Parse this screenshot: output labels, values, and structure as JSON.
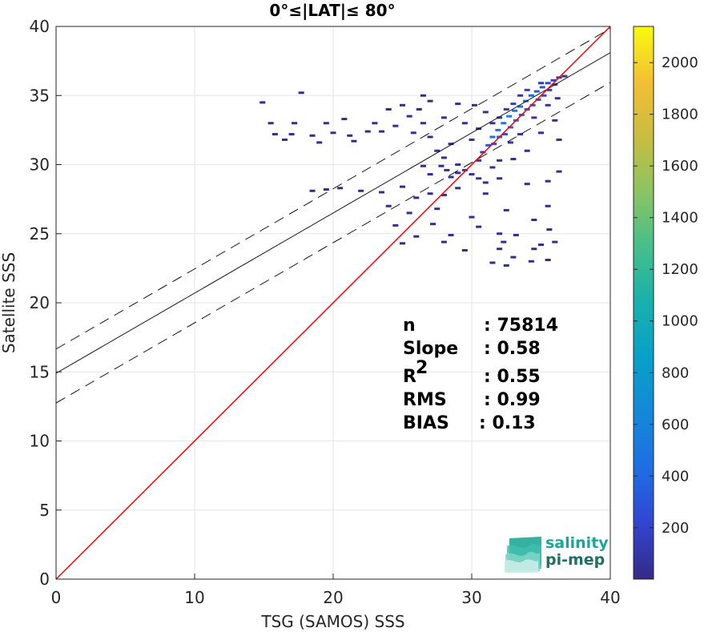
{
  "chart_data": {
    "type": "heatmap",
    "title": "0°≤|LAT|≤ 80°",
    "xlabel": "TSG (SAMOS) SSS",
    "ylabel": "Satellite SSS",
    "xlim": [
      0,
      40
    ],
    "ylim": [
      0,
      40
    ],
    "xticks": [
      "0",
      "10",
      "20",
      "30",
      "40"
    ],
    "yticks": [
      "0",
      "5",
      "10",
      "15",
      "20",
      "25",
      "30",
      "35",
      "40"
    ],
    "grid": true,
    "identity_line": {
      "intercept": 0,
      "slope": 1,
      "color": "#ff0000"
    },
    "regression_line": {
      "intercept": 14.9,
      "slope": 0.58,
      "color": "#000000"
    },
    "confidence_lines": [
      {
        "intercept": 16.65,
        "slope": 0.58,
        "style": "dashed"
      },
      {
        "intercept": 12.75,
        "slope": 0.58,
        "style": "dashed"
      }
    ],
    "colorbar": {
      "min": 1,
      "max": 2140,
      "ticks": [
        "200",
        "400",
        "600",
        "800",
        "1000",
        "1200",
        "1400",
        "1600",
        "1800",
        "2000"
      ],
      "tick_values": [
        200,
        400,
        600,
        800,
        1000,
        1200,
        1400,
        1600,
        1800,
        2000
      ],
      "colormap": "parula"
    },
    "density_cells": [
      [
        14.9,
        34.5,
        5
      ],
      [
        17.7,
        35.2,
        3
      ],
      [
        15.8,
        32.2,
        10
      ],
      [
        17.0,
        32.2,
        20
      ],
      [
        18.5,
        32.1,
        15
      ],
      [
        20.0,
        32.3,
        25
      ],
      [
        21.2,
        32.1,
        20
      ],
      [
        22.5,
        32.4,
        15
      ],
      [
        15.5,
        33.0,
        10
      ],
      [
        17.2,
        33.0,
        15
      ],
      [
        19.5,
        33.0,
        10
      ],
      [
        20.8,
        33.3,
        20
      ],
      [
        23.0,
        33.0,
        15
      ],
      [
        16.5,
        31.8,
        10
      ],
      [
        19.0,
        31.6,
        15
      ],
      [
        21.5,
        31.7,
        10
      ],
      [
        23.5,
        32.4,
        25
      ],
      [
        24.5,
        32.8,
        30
      ],
      [
        25.5,
        33.5,
        25
      ],
      [
        24.0,
        34.0,
        20
      ],
      [
        25.0,
        34.3,
        15
      ],
      [
        26.2,
        34.0,
        25
      ],
      [
        25.8,
        32.3,
        20
      ],
      [
        26.5,
        33.0,
        30
      ],
      [
        27.0,
        32.0,
        25
      ],
      [
        27.0,
        34.6,
        15
      ],
      [
        26.5,
        35.0,
        10
      ],
      [
        28.0,
        33.4,
        35
      ],
      [
        28.5,
        31.5,
        40
      ],
      [
        29.0,
        34.4,
        25
      ],
      [
        29.5,
        33.0,
        35
      ],
      [
        30.0,
        31.8,
        40
      ],
      [
        27.5,
        31.0,
        20
      ],
      [
        28.0,
        30.5,
        30
      ],
      [
        29.0,
        30.0,
        60
      ],
      [
        29.5,
        29.6,
        80
      ],
      [
        28.2,
        29.6,
        40
      ],
      [
        27.8,
        29.9,
        30
      ],
      [
        29.0,
        29.4,
        50
      ],
      [
        27.0,
        29.3,
        25
      ],
      [
        26.5,
        29.9,
        20
      ],
      [
        28.5,
        29.1,
        35
      ],
      [
        30.0,
        29.3,
        40
      ],
      [
        30.5,
        30.3,
        120
      ],
      [
        30.8,
        30.9,
        200
      ],
      [
        31.2,
        31.4,
        300
      ],
      [
        31.5,
        32.0,
        420
      ],
      [
        31.9,
        32.5,
        500
      ],
      [
        32.3,
        33.0,
        560
      ],
      [
        32.7,
        33.5,
        540
      ],
      [
        33.1,
        33.9,
        500
      ],
      [
        33.5,
        34.2,
        460
      ],
      [
        33.9,
        34.6,
        420
      ],
      [
        34.3,
        35.0,
        380
      ],
      [
        34.7,
        35.3,
        340
      ],
      [
        35.1,
        35.6,
        300
      ],
      [
        35.5,
        35.9,
        250
      ],
      [
        35.9,
        36.1,
        200
      ],
      [
        36.3,
        36.3,
        140
      ],
      [
        36.7,
        36.4,
        80
      ],
      [
        31.6,
        31.5,
        250
      ],
      [
        32.0,
        32.0,
        350
      ],
      [
        32.4,
        32.2,
        300
      ],
      [
        32.8,
        32.7,
        380
      ],
      [
        33.2,
        33.2,
        400
      ],
      [
        33.6,
        33.6,
        350
      ],
      [
        34.0,
        34.0,
        320
      ],
      [
        34.4,
        34.3,
        280
      ],
      [
        34.8,
        34.7,
        260
      ],
      [
        35.2,
        35.0,
        230
      ],
      [
        35.6,
        35.4,
        190
      ],
      [
        36.0,
        35.8,
        150
      ],
      [
        32.5,
        34.0,
        150
      ],
      [
        33.0,
        34.4,
        180
      ],
      [
        34.0,
        35.4,
        160
      ],
      [
        35.0,
        35.9,
        120
      ],
      [
        33.5,
        35.0,
        100
      ],
      [
        32.0,
        33.4,
        120
      ],
      [
        31.5,
        33.0,
        90
      ],
      [
        30.5,
        32.6,
        60
      ],
      [
        31.0,
        33.8,
        50
      ],
      [
        30.2,
        34.3,
        30
      ],
      [
        32.8,
        31.6,
        100
      ],
      [
        33.5,
        32.2,
        80
      ],
      [
        34.5,
        33.4,
        90
      ],
      [
        35.5,
        34.3,
        70
      ],
      [
        36.2,
        34.8,
        60
      ],
      [
        34.0,
        31.0,
        40
      ],
      [
        35.0,
        32.3,
        35
      ],
      [
        36.0,
        33.2,
        30
      ],
      [
        36.3,
        31.8,
        20
      ],
      [
        33.0,
        30.4,
        30
      ],
      [
        32.0,
        30.3,
        40
      ],
      [
        31.5,
        29.8,
        60
      ],
      [
        30.5,
        29.0,
        80
      ],
      [
        31.0,
        28.7,
        30
      ],
      [
        32.0,
        29.0,
        25
      ],
      [
        18.5,
        28.1,
        15
      ],
      [
        19.5,
        28.2,
        15
      ],
      [
        20.5,
        28.3,
        10
      ],
      [
        22.0,
        28.1,
        20
      ],
      [
        23.5,
        28.0,
        15
      ],
      [
        25.0,
        28.4,
        10
      ],
      [
        26.0,
        27.6,
        15
      ],
      [
        27.0,
        27.9,
        20
      ],
      [
        28.0,
        27.8,
        15
      ],
      [
        29.0,
        28.3,
        20
      ],
      [
        31.0,
        27.9,
        25
      ],
      [
        34.0,
        28.6,
        15
      ],
      [
        35.5,
        28.8,
        20
      ],
      [
        36.3,
        29.5,
        15
      ],
      [
        24.0,
        27.0,
        10
      ],
      [
        25.5,
        26.5,
        15
      ],
      [
        27.5,
        26.8,
        10
      ],
      [
        30.0,
        26.2,
        20
      ],
      [
        32.5,
        26.7,
        25
      ],
      [
        34.5,
        26.0,
        20
      ],
      [
        35.5,
        27.0,
        15
      ],
      [
        24.5,
        25.6,
        10
      ],
      [
        27.2,
        25.7,
        10
      ],
      [
        30.5,
        25.5,
        15
      ],
      [
        32.0,
        25.0,
        10
      ],
      [
        33.2,
        24.9,
        20
      ],
      [
        35.6,
        25.3,
        10
      ],
      [
        26.0,
        24.8,
        10
      ],
      [
        28.5,
        24.9,
        10
      ],
      [
        32.3,
        24.4,
        15
      ],
      [
        35.0,
        24.2,
        10
      ],
      [
        29.5,
        23.8,
        10
      ],
      [
        32.0,
        23.9,
        15
      ],
      [
        34.5,
        23.9,
        10
      ],
      [
        35.5,
        23.1,
        10
      ],
      [
        33.0,
        23.3,
        15
      ],
      [
        31.5,
        22.9,
        15
      ],
      [
        32.5,
        22.7,
        10
      ],
      [
        34.3,
        23.0,
        10
      ],
      [
        36.0,
        24.4,
        10
      ],
      [
        28.0,
        24.4,
        10
      ],
      [
        25.0,
        24.3,
        8
      ]
    ],
    "stats": [
      {
        "label": "n",
        "value": ": 75814"
      },
      {
        "label": "Slope",
        "value": ": 0.58"
      },
      {
        "label": "R",
        "superscript": "2",
        "value": ": 0.55"
      },
      {
        "label": "RMS",
        "value": ": 0.99"
      },
      {
        "label": "BIAS",
        "value": ": 0.13"
      }
    ]
  },
  "logo": {
    "line1": "salinity",
    "line2": "pi-mep",
    "color1": "#1aa79a",
    "color2": "#1f6f65"
  },
  "colors": {
    "axes": "#262626",
    "grid": "#e6e6e6",
    "identity": "#ff0000",
    "regression": "#000000"
  }
}
